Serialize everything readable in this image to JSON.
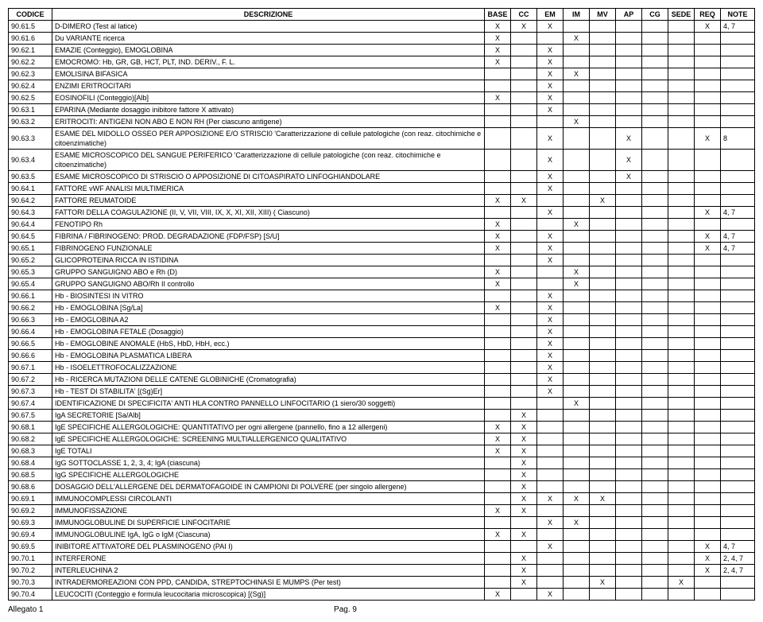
{
  "headers": [
    "CODICE",
    "DESCRIZIONE",
    "BASE",
    "CC",
    "EM",
    "IM",
    "MV",
    "AP",
    "CG",
    "SEDE",
    "REQ",
    "NOTE"
  ],
  "rows": [
    {
      "c": "90.61.5",
      "d": "D-DIMERO (Test al latice)",
      "m": {
        "BASE": "X",
        "CC": "X",
        "EM": "X",
        "REQ": "X"
      },
      "n": "4, 7"
    },
    {
      "c": "90.61.6",
      "d": "Du VARIANTE ricerca",
      "m": {
        "BASE": "X",
        "IM": "X"
      }
    },
    {
      "c": "90.62.1",
      "d": "EMAZIE (Conteggio), EMOGLOBINA",
      "m": {
        "BASE": "X",
        "EM": "X"
      }
    },
    {
      "c": "90.62.2",
      "d": "EMOCROMO: Hb, GR, GB, HCT, PLT, IND. DERIV., F. L.",
      "m": {
        "BASE": "X",
        "EM": "X"
      }
    },
    {
      "c": "90.62.3",
      "d": "EMOLISINA BIFASICA",
      "m": {
        "EM": "X",
        "IM": "X"
      }
    },
    {
      "c": "90.62.4",
      "d": "ENZIMI ERITROCITARI",
      "m": {
        "EM": "X"
      }
    },
    {
      "c": "90.62.5",
      "d": "EOSINOFILI (Conteggio)[Alb]",
      "m": {
        "BASE": "X",
        "EM": "X"
      }
    },
    {
      "c": "90.63.1",
      "d": "EPARINA (Mediante dosaggio inibitore fattore X attivato)",
      "m": {
        "EM": "X"
      }
    },
    {
      "c": "90.63.2",
      "d": "ERITROCITI: ANTIGENI NON ABO E NON RH (Per ciascuno antigene)",
      "m": {
        "IM": "X"
      }
    },
    {
      "c": "90.63.3",
      "d": "ESAME DEL MIDOLLO OSSEO PER APPOSIZIONE E/O STRISCI0 'Caratterizzazione di cellule patologiche (con reaz. citochimiche e citoenzimatiche)",
      "m": {
        "EM": "X",
        "AP": "X",
        "REQ": "X"
      },
      "n": "8"
    },
    {
      "c": "90.63.4",
      "d": "ESAME MICROSCOPICO DEL SANGUE PERIFERICO 'Caratterizzazione di cellule patologiche (con reaz. citochimiche e citoenzimatiche)",
      "m": {
        "EM": "X",
        "AP": "X"
      }
    },
    {
      "c": "90.63.5",
      "d": "ESAME MICROSCOPICO DI STRISCIO O APPOSIZIONE DI CITOASPIRATO LINFOGHIANDOLARE",
      "m": {
        "EM": "X",
        "AP": "X"
      }
    },
    {
      "c": "90.64.1",
      "d": "FATTORE vWF ANALISI MULTIMERICA",
      "m": {
        "EM": "X"
      }
    },
    {
      "c": "90.64.2",
      "d": "FATTORE REUMATOIDE",
      "m": {
        "BASE": "X",
        "CC": "X",
        "MV": "X"
      }
    },
    {
      "c": "90.64.3",
      "d": "FATTORI DELLA COAGULAZIONE (II, V, VII, VIII, IX, X, XI, XII, XIII) ( Ciascuno)",
      "m": {
        "EM": "X",
        "REQ": "X"
      },
      "n": "4, 7"
    },
    {
      "c": "90.64.4",
      "d": "FENOTIPO Rh",
      "m": {
        "BASE": "X",
        "IM": "X"
      }
    },
    {
      "c": "90.64.5",
      "d": "FIBRINA / FIBRINOGENO: PROD. DEGRADAZIONE (FDP/FSP) [S/U]",
      "m": {
        "BASE": "X",
        "EM": "X",
        "REQ": "X"
      },
      "n": "4, 7"
    },
    {
      "c": "90.65.1",
      "d": "FIBRINOGENO FUNZIONALE",
      "m": {
        "BASE": "X",
        "EM": "X",
        "REQ": "X"
      },
      "n": "4, 7"
    },
    {
      "c": "90.65.2",
      "d": "GLICOPROTEINA RICCA IN ISTIDINA",
      "m": {
        "EM": "X"
      }
    },
    {
      "c": "90.65.3",
      "d": "GRUPPO SANGUIGNO ABO e Rh (D)",
      "m": {
        "BASE": "X",
        "IM": "X"
      }
    },
    {
      "c": "90.65.4",
      "d": "GRUPPO SANGUIGNO ABO/Rh II controllo",
      "m": {
        "BASE": "X",
        "IM": "X"
      }
    },
    {
      "c": "90.66.1",
      "d": "Hb - BIOSINTESI IN VITRO",
      "m": {
        "EM": "X"
      }
    },
    {
      "c": "90.66.2",
      "d": "Hb - EMOGLOBINA [Sg/La]",
      "m": {
        "BASE": "X",
        "EM": "X"
      }
    },
    {
      "c": "90.66.3",
      "d": "Hb - EMOGLOBINA A2",
      "m": {
        "EM": "X"
      }
    },
    {
      "c": "90.66.4",
      "d": "Hb - EMOGLOBINA FETALE (Dosaggio)",
      "m": {
        "EM": "X"
      }
    },
    {
      "c": "90.66.5",
      "d": "Hb - EMOGLOBINE ANOMALE (HbS, HbD, HbH, ecc.)",
      "m": {
        "EM": "X"
      }
    },
    {
      "c": "90.66.6",
      "d": "Hb - EMOGLOBINA PLASMATICA LIBERA",
      "m": {
        "EM": "X"
      }
    },
    {
      "c": "90.67.1",
      "d": "Hb - ISOELETTROFOCALIZZAZIONE",
      "m": {
        "EM": "X"
      }
    },
    {
      "c": "90.67.2",
      "d": "Hb - RICERCA MUTAZIONI DELLE CATENE GLOBINICHE (Cromatografia)",
      "m": {
        "EM": "X"
      }
    },
    {
      "c": "90.67.3",
      "d": "Hb - TEST DI STABILITA' [(Sg)Er]",
      "m": {
        "EM": "X"
      }
    },
    {
      "c": "90.67.4",
      "d": "IDENTIFICAZIONE DI SPECIFICITA' ANTI HLA CONTRO PANNELLO LINFOCITARIO (1 siero/30 soggetti)",
      "m": {
        "IM": "X"
      }
    },
    {
      "c": "90.67.5",
      "d": "IgA SECRETORIE [Sa/Alb]",
      "m": {
        "CC": "X"
      }
    },
    {
      "c": "90.68.1",
      "d": "IgE SPECIFICHE ALLERGOLOGICHE: QUANTITATIVO per ogni allergene (pannello, fino a 12 allergeni)",
      "m": {
        "BASE": "X",
        "CC": "X"
      }
    },
    {
      "c": "90.68.2",
      "d": "IgE SPECIFICHE ALLERGOLOGICHE: SCREENING MULTIALLERGENICO QUALITATIVO",
      "m": {
        "BASE": "X",
        "CC": "X"
      }
    },
    {
      "c": "90.68.3",
      "d": "IgE TOTALI",
      "m": {
        "BASE": "X",
        "CC": "X"
      }
    },
    {
      "c": "90.68.4",
      "d": "IgG SOTTOCLASSE 1, 2, 3, 4; IgA (ciascuna)",
      "m": {
        "CC": "X"
      }
    },
    {
      "c": "90.68.5",
      "d": "IgG SPECIFICHE ALLERGOLOGICHE",
      "m": {
        "CC": "X"
      }
    },
    {
      "c": "90.68.6",
      "d": "DOSAGGIO DELL'ALLERGENE DEL DERMATOFAGOIDE IN CAMPIONI DI POLVERE (per singolo allergene)",
      "m": {
        "CC": "X"
      }
    },
    {
      "c": "90.69.1",
      "d": "IMMUNOCOMPLESSI CIRCOLANTI",
      "m": {
        "CC": "X",
        "EM": "X",
        "IM": "X",
        "MV": "X"
      }
    },
    {
      "c": "90.69.2",
      "d": "IMMUNOFISSAZIONE",
      "m": {
        "BASE": "X",
        "CC": "X"
      }
    },
    {
      "c": "90.69.3",
      "d": "IMMUNOGLOBULINE DI SUPERFICIE LINFOCITARIE",
      "m": {
        "EM": "X",
        "IM": "X"
      }
    },
    {
      "c": "90.69.4",
      "d": "IMMUNOGLOBULINE IgA, IgG o IgM (Ciascuna)",
      "m": {
        "BASE": "X",
        "CC": "X"
      }
    },
    {
      "c": "90.69.5",
      "d": "INIBITORE ATTIVATORE DEL PLASMINOGENO (PAI I)",
      "m": {
        "EM": "X",
        "REQ": "X"
      },
      "n": "4, 7"
    },
    {
      "c": "90.70.1",
      "d": "INTERFERONE",
      "m": {
        "CC": "X",
        "REQ": "X"
      },
      "n": "2, 4, 7"
    },
    {
      "c": "90.70.2",
      "d": "INTERLEUCHINA 2",
      "m": {
        "CC": "X",
        "REQ": "X"
      },
      "n": "2, 4, 7"
    },
    {
      "c": "90.70.3",
      "d": "INTRADERMOREAZIONI CON PPD, CANDIDA, STREPTOCHINASI E MUMPS (Per test)",
      "m": {
        "CC": "X",
        "MV": "X",
        "SEDE": "X"
      }
    },
    {
      "c": "90.70.4",
      "d": "LEUCOCITI (Conteggio e formula leucocitaria microscopica) [(Sg)]",
      "m": {
        "BASE": "X",
        "EM": "X"
      }
    }
  ],
  "footer": {
    "left": "Allegato 1",
    "right": "Pag. 9"
  },
  "markCols": [
    "BASE",
    "CC",
    "EM",
    "IM",
    "MV",
    "AP",
    "CG",
    "SEDE",
    "REQ"
  ]
}
